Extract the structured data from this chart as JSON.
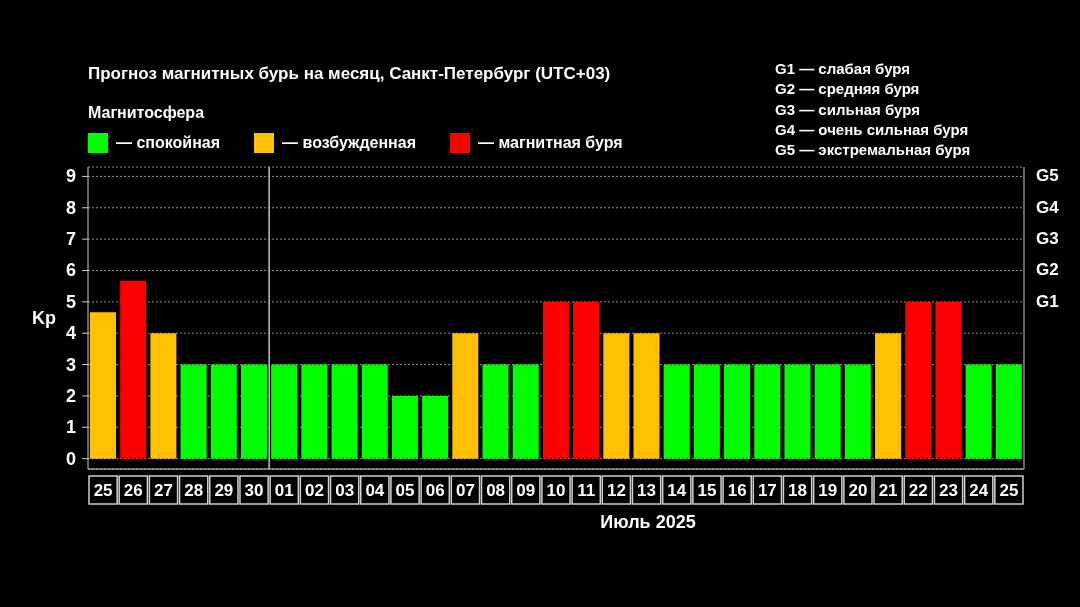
{
  "chart_data": {
    "type": "bar",
    "title": "Прогноз магнитных бурь на месяц, Санкт-Петербург (UTC+03)",
    "legend_title": "Магнитосфера",
    "xlabel": "Июль 2025",
    "ylabel": "Kp",
    "categories": [
      "25",
      "26",
      "27",
      "28",
      "29",
      "30",
      "01",
      "02",
      "03",
      "04",
      "05",
      "06",
      "07",
      "08",
      "09",
      "10",
      "11",
      "12",
      "13",
      "14",
      "15",
      "16",
      "17",
      "18",
      "19",
      "20",
      "21",
      "22",
      "23",
      "24",
      "25"
    ],
    "series": [
      {
        "name": "— спокойная",
        "color": "#00ff00",
        "values": [
          null,
          null,
          null,
          3,
          3,
          3,
          3,
          3,
          3,
          3,
          2,
          2,
          null,
          3,
          3,
          null,
          null,
          null,
          null,
          3,
          3,
          3,
          3,
          3,
          3,
          3,
          null,
          null,
          null,
          3,
          3
        ]
      },
      {
        "name": "— возбужденная",
        "color": "#ffc000",
        "values": [
          4.67,
          null,
          4,
          null,
          null,
          null,
          null,
          null,
          null,
          null,
          null,
          null,
          4,
          null,
          null,
          null,
          null,
          4,
          4,
          null,
          null,
          null,
          null,
          null,
          null,
          null,
          4,
          null,
          null,
          null,
          null
        ]
      },
      {
        "name": "— магнитная буря",
        "color": "#ff0000",
        "values": [
          null,
          5.67,
          null,
          null,
          null,
          null,
          null,
          null,
          null,
          null,
          null,
          null,
          null,
          null,
          null,
          5,
          5,
          null,
          null,
          null,
          null,
          null,
          null,
          null,
          null,
          null,
          null,
          5,
          5,
          null,
          null
        ]
      }
    ],
    "stacked": true,
    "ylim": [
      -0.33,
      9.3
    ],
    "yticks": [
      0,
      1,
      2,
      3,
      4,
      5,
      6,
      7,
      8,
      9
    ],
    "ref_lines": [
      {
        "axis": "x",
        "value": "01",
        "color": "#c0c0c0"
      }
    ],
    "grid": "y",
    "legend": "top left",
    "annotations": [
      "G1",
      "G2",
      "G3",
      "G4",
      "G5",
      "G1 — слабая буря",
      "G2 — средняя буря",
      "G3 — сильная буря",
      "G4 — очень сильная буря",
      "G5 — экстремальная буря"
    ]
  }
}
